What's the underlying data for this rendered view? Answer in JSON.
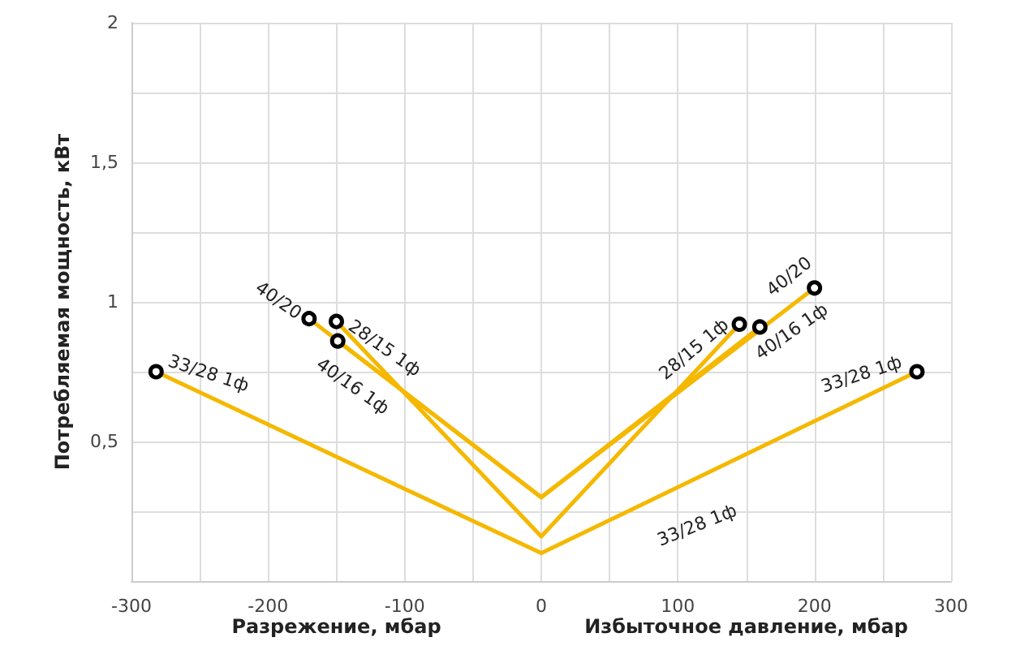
{
  "chart_data": {
    "type": "line",
    "ylabel": "Потребляемая мощность, кВт",
    "xlabel": [
      "Разрежение, мбар",
      "Избыточное давление, мбар"
    ],
    "xlim": [
      -300,
      300
    ],
    "xticks": [
      -300,
      {
        "value": -250,
        "label": null
      },
      -200,
      {
        "value": -150,
        "label": null
      },
      -100,
      {
        "value": -50,
        "label": null
      },
      0,
      {
        "value": 50,
        "label": null
      },
      100,
      {
        "value": 150,
        "label": null
      },
      200,
      {
        "value": 250,
        "label": null
      },
      300
    ],
    "ylim": [
      0,
      2
    ],
    "yticks": [
      {
        "value": 0,
        "label": null
      },
      {
        "value": 0.25,
        "label": null
      },
      {
        "value": 0.5,
        "label": "0,5"
      },
      {
        "value": 0.75,
        "label": null
      },
      1,
      {
        "value": 1.25,
        "label": null
      },
      {
        "value": 1.5,
        "label": "1,5"
      },
      {
        "value": 1.75,
        "label": null
      },
      2
    ],
    "grid": true,
    "legend": false,
    "marker": "circle",
    "line_style": "solid",
    "series": [
      {
        "name": "40/20",
        "color": "#f5b800",
        "x": [
          -170,
          0,
          200
        ],
        "values": [
          0.94,
          0.3,
          1.05
        ]
      },
      {
        "name": "28/15 1ф",
        "color": "#f5b800",
        "x": [
          -150,
          0,
          145
        ],
        "values": [
          0.93,
          0.16,
          0.92
        ]
      },
      {
        "name": "40/16 1ф",
        "color": "#f5b800",
        "x": [
          -149,
          0,
          160
        ],
        "values": [
          0.86,
          0.3,
          0.91
        ]
      },
      {
        "name": "33/28 1ф",
        "color": "#f5b800",
        "x": [
          -282,
          0,
          275
        ],
        "values": [
          0.75,
          0.1,
          0.75
        ]
      }
    ],
    "annotations": [
      "33/28 1ф"
    ]
  }
}
